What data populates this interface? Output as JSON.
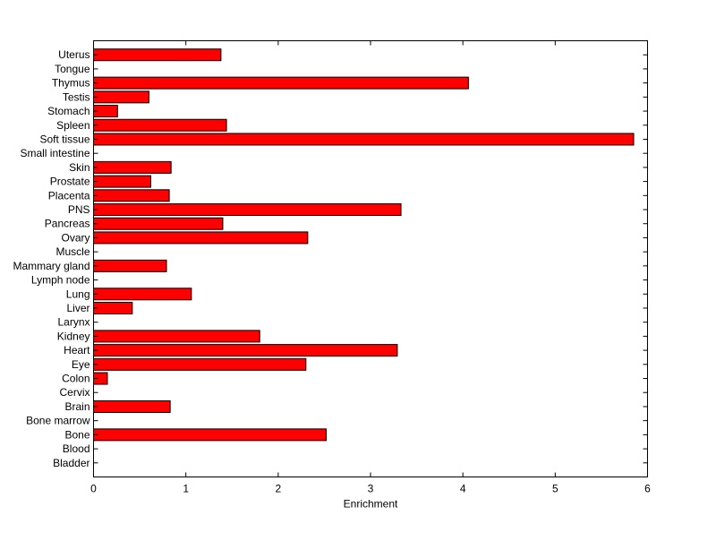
{
  "chart_data": {
    "type": "bar",
    "orientation": "horizontal",
    "title": "",
    "xlabel": "Enrichment",
    "ylabel": "",
    "xlim": [
      0,
      6
    ],
    "xticks": [
      "0",
      "1",
      "2",
      "3",
      "4",
      "5",
      "6"
    ],
    "grid": false,
    "categories": [
      "Uterus",
      "Tongue",
      "Thymus",
      "Testis",
      "Stomach",
      "Spleen",
      "Soft tissue",
      "Small intestine",
      "Skin",
      "Prostate",
      "Placenta",
      "PNS",
      "Pancreas",
      "Ovary",
      "Muscle",
      "Mammary gland",
      "Lymph node",
      "Lung",
      "Liver",
      "Larynx",
      "Kidney",
      "Heart",
      "Eye",
      "Colon",
      "Cervix",
      "Brain",
      "Bone marrow",
      "Bone",
      "Blood",
      "Bladder"
    ],
    "values": [
      1.38,
      0,
      4.06,
      0.6,
      0.26,
      1.44,
      5.85,
      0,
      0.84,
      0.62,
      0.82,
      3.33,
      1.4,
      2.32,
      0,
      0.79,
      0,
      1.06,
      0.42,
      0,
      1.8,
      3.29,
      2.3,
      0.15,
      0,
      0.83,
      0,
      2.52,
      0,
      0
    ],
    "colors": {
      "bar_fill": "#ff0000",
      "bar_edge": "#000000",
      "axes": "#000000"
    }
  }
}
